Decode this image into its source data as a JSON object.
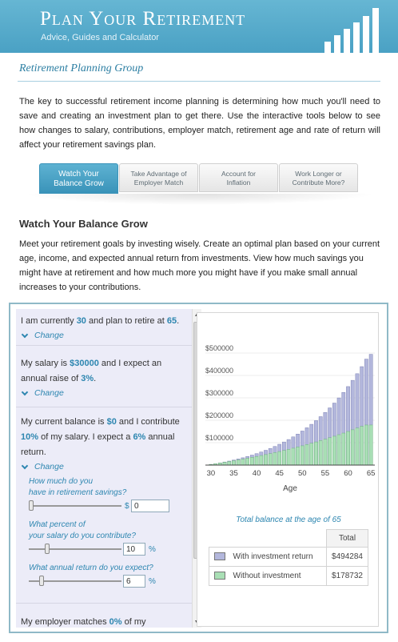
{
  "header": {
    "title": "Plan Your Retirement",
    "subtitle": "Advice, Guides and Calculator"
  },
  "group_title": "Retirement Planning Group",
  "intro": "The key to successful retirement income planning is determining how much you'll need to save and creating an investment plan to get there. Use the interactive tools below to see how changes to salary, contributions, employer match, retirement age and rate of return will affect your retirement savings plan.",
  "tabs": [
    {
      "line1": "Watch Your",
      "line2": "Balance Grow",
      "active": true
    },
    {
      "line1": "Take Advantage of",
      "line2": "Employer Match",
      "active": false
    },
    {
      "line1": "Account for",
      "line2": "Inflation",
      "active": false
    },
    {
      "line1": "Work Longer or",
      "line2": "Contribute More?",
      "active": false
    }
  ],
  "section": {
    "title": "Watch Your Balance Grow",
    "description": "Meet your retirement goals by investing wisely. Create an optimal plan based on your current age, income, and expected annual return from investments. View how much savings you might have at retirement and how much more you might have if you make small annual increases to your contributions."
  },
  "calculator": {
    "age_item": {
      "p1": "I am currently ",
      "age": "30",
      "p2": " and plan to retire at ",
      "retire": "65",
      "p3": "."
    },
    "salary_item": {
      "p1": "My salary is ",
      "salary": "$30000",
      "p2": " and I expect an annual raise of ",
      "raise": "3%",
      "p3": "."
    },
    "balance_item": {
      "p1": "My current balance is ",
      "balance": "$0",
      "p2": " and I contribute ",
      "contrib": "10%",
      "p3": " of my salary. I expect a ",
      "ret": "6%",
      "p4": " annual return."
    },
    "change_label": "Change",
    "q_savings_1": "How much do you",
    "q_savings_2": "have in retirement savings?",
    "savings_unit": "$",
    "savings_value": "0",
    "q_percent_1": "What percent of",
    "q_percent_2": "your salary do you contribute?",
    "percent_value": "10",
    "percent_unit": "%",
    "q_return": "What annual return do you expect?",
    "return_value": "6",
    "return_unit": "%",
    "employer_item": {
      "p1": "My employer matches ",
      "match": "0%",
      "p2": " of my"
    },
    "slider_levels": {
      "savings": 0.0,
      "percent": 0.18,
      "return": 0.12
    }
  },
  "results": {
    "total_title": "Total balance at the age of 65",
    "col_header": "Total",
    "rows": [
      {
        "label": "With investment return",
        "value": "$494284",
        "color": "#b3b7dc"
      },
      {
        "label": "Without investment",
        "value": "$178732",
        "color": "#a9dfb5"
      }
    ]
  },
  "chart_data": {
    "type": "bar",
    "x": [
      30,
      31,
      32,
      33,
      34,
      35,
      36,
      37,
      38,
      39,
      40,
      41,
      42,
      43,
      44,
      45,
      46,
      47,
      48,
      49,
      50,
      51,
      52,
      53,
      54,
      55,
      56,
      57,
      58,
      59,
      60,
      61,
      62,
      63,
      64,
      65
    ],
    "series": [
      {
        "name": "With investment return",
        "color": "#b3b7dc",
        "values": [
          3000,
          6270,
          9827,
          13689,
          17877,
          22412,
          27318,
          32618,
          38339,
          44509,
          51158,
          58317,
          66020,
          74302,
          83201,
          92756,
          103010,
          114008,
          125796,
          138424,
          151945,
          166415,
          181893,
          198441,
          216126,
          235016,
          255185,
          276711,
          299675,
          324164,
          350269,
          378086,
          407716,
          439265,
          472844,
          494284
        ]
      },
      {
        "name": "Without investment",
        "color": "#a9dfb5",
        "values": [
          3000,
          6090,
          9273,
          12551,
          15927,
          19405,
          22987,
          26676,
          30477,
          34391,
          38423,
          42576,
          46853,
          51259,
          55796,
          60470,
          65285,
          70243,
          75351,
          80611,
          86030,
          91610,
          97359,
          103279,
          109377,
          115659,
          122128,
          128792,
          135655,
          142725,
          150007,
          157507,
          165232,
          173189,
          178732,
          178732
        ]
      }
    ],
    "xlabel": "Age",
    "ylim": [
      0,
      500000
    ],
    "yticks": [
      "$100000",
      "$200000",
      "$300000",
      "$400000",
      "$500000"
    ],
    "xticks": [
      "30",
      "35",
      "40",
      "45",
      "50",
      "55",
      "60",
      "65"
    ]
  }
}
